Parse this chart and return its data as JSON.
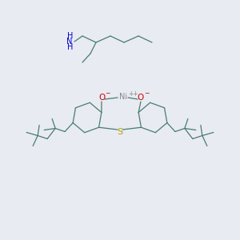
{
  "bg_color": "#e8ebf2",
  "bond_color": "#4a7c6f",
  "nh2_color": "#0000cc",
  "O_color": "#cc0000",
  "S_color": "#b8a000",
  "Ni_color": "#888888",
  "figsize": [
    3.0,
    3.0
  ],
  "dpi": 100,
  "xlim": [
    0,
    300
  ],
  "ylim": [
    0,
    300
  ]
}
